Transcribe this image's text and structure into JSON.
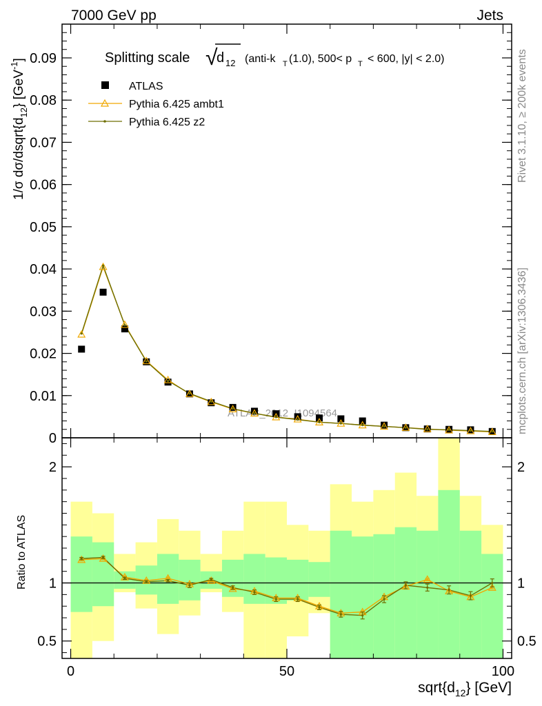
{
  "header": {
    "left": "7000 GeV pp",
    "right": "Jets",
    "side_top": "Rivet 3.1.10, ≥ 200k events",
    "side_bottom": "mcplots.cern.ch [arXiv:1306.3436]",
    "watermark": "ATLAS_2012_I1094564"
  },
  "colors": {
    "atlas": "#000000",
    "ambt1": "#f0a800",
    "z2": "#6e6e00",
    "band_yellow": "#ffff99",
    "band_green": "#99ff99"
  },
  "chart_data": [
    {
      "type": "line",
      "title": "Splitting scale √d12 (anti-kT(1.0), 500< pT < 600, |y| < 2.0)",
      "title_parts": {
        "prefix": "Splitting scale",
        "sqrt_sym": "√",
        "sqrt_d": "d",
        "sqrt_sub": "12",
        "paren_a": "(anti-k",
        "paren_a_sub": "T",
        "paren_b": "(1.0), 500< p",
        "paren_b_sub": "T",
        "paren_c": "< 600, |y| < 2.0)"
      },
      "ylabel": "1/σ dσ/dsqrt{d12} [GeV^-1]",
      "ylabel_parts": {
        "main": "1/σ dσ/dsqrt{d",
        "sub": "12",
        "mid": "} [GeV",
        "sup": "-1",
        "end": "]"
      },
      "xlim": [
        -2,
        102
      ],
      "ylim": [
        0,
        0.098
      ],
      "yticks": [
        0,
        0.01,
        0.02,
        0.03,
        0.04,
        0.05,
        0.06,
        0.07,
        0.08,
        0.09
      ],
      "ytick_labels": [
        "0",
        "0.01",
        "0.02",
        "0.03",
        "0.04",
        "0.05",
        "0.06",
        "0.07",
        "0.08",
        "0.09"
      ],
      "x": [
        2.5,
        7.5,
        12.5,
        17.5,
        22.5,
        27.5,
        32.5,
        37.5,
        42.5,
        47.5,
        52.5,
        57.5,
        62.5,
        67.5,
        72.5,
        77.5,
        82.5,
        87.5,
        92.5,
        97.5
      ],
      "series": [
        {
          "name": "ATLAS",
          "marker": "square",
          "values": [
            0.021,
            0.0345,
            0.0258,
            0.018,
            0.0132,
            0.0104,
            0.0083,
            0.0072,
            0.0063,
            0.0057,
            0.005,
            0.0047,
            0.0045,
            0.004,
            0.003,
            0.0024,
            0.0021,
            0.002,
            0.0019,
            0.0015
          ]
        },
        {
          "name": "Pythia 6.425 ambt1",
          "marker": "triangle",
          "values": [
            0.0245,
            0.0405,
            0.0268,
            0.0182,
            0.0137,
            0.0104,
            0.0085,
            0.0068,
            0.0058,
            0.0049,
            0.0044,
            0.0037,
            0.0034,
            0.003,
            0.0027,
            0.0024,
            0.0021,
            0.0018,
            0.0016,
            0.0014
          ]
        },
        {
          "name": "Pythia 6.425 z2",
          "marker": "dot",
          "values": [
            0.0247,
            0.0408,
            0.0267,
            0.0181,
            0.0135,
            0.0105,
            0.0086,
            0.0069,
            0.0058,
            0.0049,
            0.0043,
            0.0037,
            0.0034,
            0.003,
            0.0027,
            0.0024,
            0.002,
            0.0019,
            0.0017,
            0.0015
          ]
        }
      ],
      "legend_position": "top-left"
    },
    {
      "type": "line",
      "ylabel": "Ratio to ATLAS",
      "xlabel": "sqrt{d12} [GeV]",
      "xlabel_parts": {
        "main": "sqrt{d",
        "sub": "12",
        "end": "} [GeV]"
      },
      "xlim": [
        -2,
        102
      ],
      "ylim": [
        0.35,
        2.25
      ],
      "yticks": [
        0.5,
        1,
        2
      ],
      "ytick_labels": [
        "0.5",
        "1",
        "2"
      ],
      "xticks": [
        0,
        50,
        100
      ],
      "xtick_labels": [
        "0",
        "50",
        "100"
      ],
      "reference_line": 1,
      "x": [
        2.5,
        7.5,
        12.5,
        17.5,
        22.5,
        27.5,
        32.5,
        37.5,
        42.5,
        47.5,
        52.5,
        57.5,
        62.5,
        67.5,
        72.5,
        77.5,
        82.5,
        87.5,
        92.5,
        97.5
      ],
      "bins": [
        [
          0,
          5
        ],
        [
          5,
          10
        ],
        [
          10,
          15
        ],
        [
          15,
          20
        ],
        [
          20,
          25
        ],
        [
          25,
          30
        ],
        [
          30,
          35
        ],
        [
          35,
          40
        ],
        [
          40,
          45
        ],
        [
          45,
          50
        ],
        [
          50,
          55
        ],
        [
          55,
          60
        ],
        [
          60,
          65
        ],
        [
          65,
          70
        ],
        [
          70,
          75
        ],
        [
          75,
          80
        ],
        [
          80,
          85
        ],
        [
          85,
          90
        ],
        [
          90,
          95
        ],
        [
          95,
          100
        ]
      ],
      "band_yellow": [
        [
          0.35,
          1.7
        ],
        [
          0.5,
          1.6
        ],
        [
          0.92,
          1.25
        ],
        [
          0.78,
          1.35
        ],
        [
          0.56,
          1.55
        ],
        [
          0.72,
          1.45
        ],
        [
          0.92,
          1.25
        ],
        [
          0.75,
          1.45
        ],
        [
          0.35,
          1.7
        ],
        [
          0.35,
          1.7
        ],
        [
          0.54,
          1.5
        ],
        [
          0.74,
          1.45
        ],
        [
          0.35,
          1.85
        ],
        [
          0.35,
          1.7
        ],
        [
          0.35,
          1.8
        ],
        [
          0.35,
          1.95
        ],
        [
          0.35,
          1.75
        ],
        [
          0.35,
          2.25
        ],
        [
          0.35,
          1.75
        ],
        [
          0.35,
          1.5
        ]
      ],
      "band_green": [
        [
          0.75,
          1.4
        ],
        [
          0.8,
          1.35
        ],
        [
          0.95,
          1.1
        ],
        [
          0.9,
          1.15
        ],
        [
          0.82,
          1.25
        ],
        [
          0.85,
          1.2
        ],
        [
          0.95,
          1.1
        ],
        [
          0.88,
          1.2
        ],
        [
          0.82,
          1.25
        ],
        [
          0.82,
          1.22
        ],
        [
          0.85,
          1.2
        ],
        [
          0.88,
          1.18
        ],
        [
          0.35,
          1.45
        ],
        [
          0.35,
          1.4
        ],
        [
          0.35,
          1.42
        ],
        [
          0.35,
          1.48
        ],
        [
          0.35,
          1.45
        ],
        [
          0.35,
          1.8
        ],
        [
          0.35,
          1.45
        ],
        [
          0.35,
          1.25
        ]
      ],
      "series": [
        {
          "name": "Pythia 6.425 ambt1",
          "marker": "triangle",
          "values": [
            1.2,
            1.21,
            1.05,
            1.02,
            1.04,
            0.99,
            1.02,
            0.95,
            0.93,
            0.87,
            0.87,
            0.8,
            0.74,
            0.75,
            0.88,
            0.97,
            1.03,
            0.93,
            0.88,
            0.96
          ],
          "errors": [
            0.01,
            0.01,
            0.01,
            0.01,
            0.01,
            0.01,
            0.01,
            0.01,
            0.01,
            0.01,
            0.01,
            0.01,
            0.01,
            0.01,
            0.01,
            0.01,
            0.01,
            0.01,
            0.01,
            0.01
          ]
        },
        {
          "name": "Pythia 6.425 z2",
          "marker": "dot",
          "values": [
            1.21,
            1.22,
            1.04,
            1.01,
            1.02,
            0.98,
            1.03,
            0.96,
            0.92,
            0.86,
            0.86,
            0.79,
            0.73,
            0.72,
            0.86,
            0.98,
            0.96,
            0.94,
            0.89,
            1.0
          ],
          "errors": [
            0.01,
            0.01,
            0.01,
            0.01,
            0.01,
            0.02,
            0.01,
            0.015,
            0.02,
            0.02,
            0.02,
            0.02,
            0.025,
            0.03,
            0.03,
            0.03,
            0.03,
            0.035,
            0.035,
            0.035
          ]
        }
      ]
    }
  ]
}
